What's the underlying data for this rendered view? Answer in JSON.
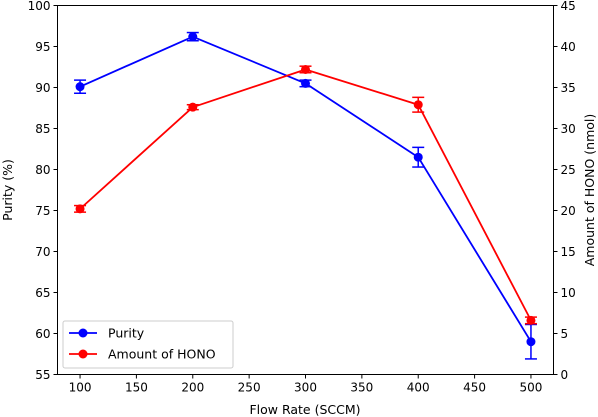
{
  "chart_data": {
    "type": "line",
    "title": "",
    "xlabel": "Flow Rate (SCCM)",
    "ylabel": "Purity (%)",
    "y2label": "Amount of HONO (nmol)",
    "xlim": [
      80,
      520
    ],
    "ylim": [
      55,
      100
    ],
    "y2lim": [
      0,
      45
    ],
    "xticks": [
      100,
      150,
      200,
      250,
      300,
      350,
      400,
      450,
      500
    ],
    "yticks": [
      55,
      60,
      65,
      70,
      75,
      80,
      85,
      90,
      95,
      100
    ],
    "y2ticks": [
      0,
      5,
      10,
      15,
      20,
      25,
      30,
      35,
      40,
      45
    ],
    "grid": false,
    "legend_position": "lower-left",
    "series": [
      {
        "name": "Purity",
        "axis": "left",
        "color": "#0000ff",
        "x": [
          100,
          200,
          300,
          400,
          500
        ],
        "y": [
          90.1,
          96.2,
          90.5,
          81.5,
          59.0
        ],
        "yerr": [
          0.8,
          0.5,
          0.4,
          1.2,
          2.1
        ]
      },
      {
        "name": "Amount of HONO",
        "axis": "right",
        "color": "#ff0000",
        "x": [
          100,
          200,
          300,
          400,
          500
        ],
        "y": [
          20.2,
          32.6,
          37.2,
          32.9,
          6.6
        ],
        "yerr": [
          0.4,
          0.3,
          0.4,
          0.9,
          0.4
        ]
      }
    ]
  }
}
